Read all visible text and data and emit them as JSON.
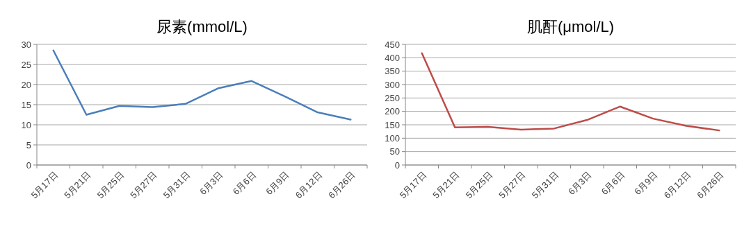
{
  "chart_data": [
    {
      "type": "line",
      "title": "尿素(mmol/L)",
      "categories": [
        "5月17日",
        "5月21日",
        "5月25日",
        "5月27日",
        "5月31日",
        "6月3日",
        "6月6日",
        "6月9日",
        "6月12日",
        "6月26日"
      ],
      "series": [
        {
          "color": "#4a7ebb",
          "values": [
            28.5,
            12.5,
            14.7,
            14.4,
            15.2,
            19.1,
            20.9,
            17.1,
            13.1,
            11.3
          ]
        }
      ],
      "ylim": [
        0,
        30
      ],
      "yticks": [
        0,
        5,
        10,
        15,
        20,
        25,
        30
      ],
      "grid": "y"
    },
    {
      "type": "line",
      "title": "肌酐(μmol/L)",
      "categories": [
        "5月17日",
        "5月21日",
        "5月25日",
        "5月27日",
        "5月31日",
        "6月3日",
        "6月6日",
        "6月9日",
        "6月12日",
        "6月26日"
      ],
      "series": [
        {
          "color": "#be4b48",
          "values": [
            417,
            140,
            142,
            132,
            136,
            168,
            218,
            173,
            146,
            129
          ]
        }
      ],
      "ylim": [
        0,
        450
      ],
      "yticks": [
        0,
        50,
        100,
        150,
        200,
        250,
        300,
        350,
        400,
        450
      ],
      "grid": "y"
    }
  ]
}
